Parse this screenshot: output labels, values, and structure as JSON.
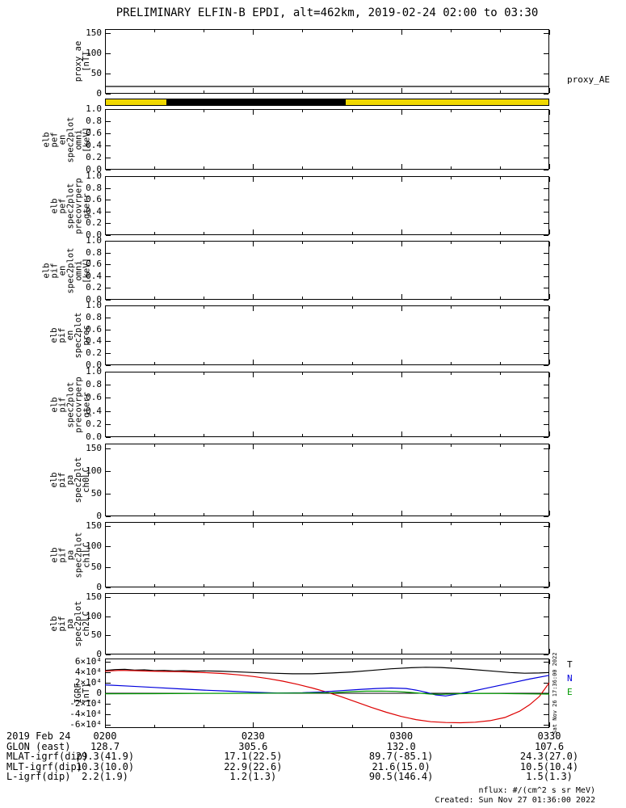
{
  "title": "PRELIMINARY ELFIN-B EPDI, alt=462km, 2019-02-24 02:00 to 03:30",
  "side_timestamp": "Sat Nov 26 17:36:00 2022",
  "footer": {
    "nflux": "nflux: #/(cm^2 s sr MeV)",
    "created": "Created: Sun Nov 27 01:36:00 2022"
  },
  "x_axis": {
    "date": "2019 Feb 24",
    "tick_labels": [
      "0200",
      "0230",
      "0300",
      "0330"
    ],
    "tick_minutes": [
      0,
      30,
      60,
      90
    ],
    "minor_step_minutes": 10,
    "range_minutes": [
      0,
      90
    ]
  },
  "bottom_rows": [
    {
      "label": "2019 Feb 24",
      "values": [
        "0200",
        "0230",
        "0300",
        "0330"
      ]
    },
    {
      "label": "GLON (east)",
      "values": [
        "128.7",
        "305.6",
        "132.0",
        "107.6"
      ]
    },
    {
      "label": "MLAT-igrf(dip)",
      "values": [
        "29.3(41.9)",
        "17.1(22.5)",
        "89.7(-85.1)",
        "24.3(27.0)"
      ]
    },
    {
      "label": "MLT-igrf(dip)",
      "values": [
        "10.3(10.0)",
        "22.9(22.6)",
        "21.6(15.0)",
        "10.5(10.4)"
      ]
    },
    {
      "label": "L-igrf(dip)",
      "values": [
        "2.2(1.9)",
        "1.2(1.3)",
        "90.5(146.4)",
        "1.5(1.3)"
      ]
    }
  ],
  "chart_data": [
    {
      "id": "proxy_ae",
      "type": "line",
      "ylabel_lines": [
        "proxy_ae",
        "[nT]"
      ],
      "ylim": [
        0,
        160
      ],
      "yticks": [
        {
          "v": 0,
          "label": "0"
        },
        {
          "v": 50,
          "label": "50"
        },
        {
          "v": 100,
          "label": "100"
        },
        {
          "v": 150,
          "label": "150"
        }
      ],
      "x_range_minutes": [
        0,
        90
      ],
      "series": [
        {
          "name": "proxy_AE",
          "color": "#000000",
          "x": [
            0,
            90
          ],
          "y": [
            18,
            18
          ]
        }
      ],
      "right_labels": [
        {
          "text": "proxy_AE",
          "color": "#000000"
        }
      ]
    },
    {
      "id": "flag_strip",
      "type": "flag-strip",
      "x_range_minutes": [
        0,
        90
      ],
      "base_color": "#f0d800",
      "segments": [
        {
          "color": "#000000",
          "from_min": 12.3,
          "to_min": 48.8
        }
      ]
    },
    {
      "id": "pef_en_omni",
      "type": "line",
      "ylabel_lines": [
        "elb",
        "pef",
        "en",
        "spec2plot",
        "omni",
        "[keV]"
      ],
      "ylim": [
        0,
        1
      ],
      "yticks": [
        {
          "v": 0.0,
          "label": "0.0"
        },
        {
          "v": 0.2,
          "label": "0.2"
        },
        {
          "v": 0.4,
          "label": "0.4"
        },
        {
          "v": 0.6,
          "label": "0.6"
        },
        {
          "v": 0.8,
          "label": "0.8"
        },
        {
          "v": 1.0,
          "label": "1.0"
        }
      ],
      "x_range_minutes": [
        0,
        90
      ],
      "series": []
    },
    {
      "id": "pef_precovrperp_gterr",
      "type": "line",
      "ylabel_lines": [
        "elb",
        "pef",
        "spec2plot",
        "precovrperp",
        "gterr"
      ],
      "ylim": [
        0,
        1
      ],
      "yticks": [
        {
          "v": 0.0,
          "label": "0.0"
        },
        {
          "v": 0.2,
          "label": "0.2"
        },
        {
          "v": 0.4,
          "label": "0.4"
        },
        {
          "v": 0.6,
          "label": "0.6"
        },
        {
          "v": 0.8,
          "label": "0.8"
        },
        {
          "v": 1.0,
          "label": "1.0"
        }
      ],
      "x_range_minutes": [
        0,
        90
      ],
      "series": []
    },
    {
      "id": "pif_en_omni",
      "type": "line",
      "ylabel_lines": [
        "elb",
        "pif",
        "en",
        "spec2plot",
        "omni",
        "[keV]"
      ],
      "ylim": [
        0,
        1
      ],
      "yticks": [
        {
          "v": 0.0,
          "label": "0.0"
        },
        {
          "v": 0.2,
          "label": "0.2"
        },
        {
          "v": 0.4,
          "label": "0.4"
        },
        {
          "v": 0.6,
          "label": "0.6"
        },
        {
          "v": 0.8,
          "label": "0.8"
        },
        {
          "v": 1.0,
          "label": "1.0"
        }
      ],
      "x_range_minutes": [
        0,
        90
      ],
      "series": []
    },
    {
      "id": "pif_en_prec",
      "type": "line",
      "ylabel_lines": [
        "elb",
        "pif",
        "en",
        "spec2plot",
        "prec"
      ],
      "ylim": [
        0,
        1
      ],
      "yticks": [
        {
          "v": 0.0,
          "label": "0.0"
        },
        {
          "v": 0.2,
          "label": "0.2"
        },
        {
          "v": 0.4,
          "label": "0.4"
        },
        {
          "v": 0.6,
          "label": "0.6"
        },
        {
          "v": 0.8,
          "label": "0.8"
        },
        {
          "v": 1.0,
          "label": "1.0"
        }
      ],
      "x_range_minutes": [
        0,
        90
      ],
      "series": []
    },
    {
      "id": "pif_precovrperp_gterr",
      "type": "line",
      "ylabel_lines": [
        "elb",
        "pif",
        "spec2plot",
        "precovrperp",
        "gterr"
      ],
      "ylim": [
        0,
        1
      ],
      "yticks": [
        {
          "v": 0.0,
          "label": "0.0"
        },
        {
          "v": 0.2,
          "label": "0.2"
        },
        {
          "v": 0.4,
          "label": "0.4"
        },
        {
          "v": 0.6,
          "label": "0.6"
        },
        {
          "v": 0.8,
          "label": "0.8"
        },
        {
          "v": 1.0,
          "label": "1.0"
        }
      ],
      "x_range_minutes": [
        0,
        90
      ],
      "series": []
    },
    {
      "id": "pif_pa_ch0lc",
      "type": "line",
      "ylabel_lines": [
        "elb",
        "pif",
        "pa",
        "spec2plot",
        "ch0LC"
      ],
      "ylim": [
        0,
        160
      ],
      "yticks": [
        {
          "v": 0,
          "label": "0"
        },
        {
          "v": 50,
          "label": "50"
        },
        {
          "v": 100,
          "label": "100"
        },
        {
          "v": 150,
          "label": "150"
        }
      ],
      "x_range_minutes": [
        0,
        90
      ],
      "series": []
    },
    {
      "id": "pif_pa_ch1lc",
      "type": "line",
      "ylabel_lines": [
        "elb",
        "pif",
        "pa",
        "spec2plot",
        "ch1LC"
      ],
      "ylim": [
        0,
        160
      ],
      "yticks": [
        {
          "v": 0,
          "label": "0"
        },
        {
          "v": 50,
          "label": "50"
        },
        {
          "v": 100,
          "label": "100"
        },
        {
          "v": 150,
          "label": "150"
        }
      ],
      "x_range_minutes": [
        0,
        90
      ],
      "series": []
    },
    {
      "id": "pif_pa_ch2lc",
      "type": "line",
      "ylabel_lines": [
        "elb",
        "pif",
        "pa",
        "spec2plot",
        "ch2LC"
      ],
      "ylim": [
        0,
        160
      ],
      "yticks": [
        {
          "v": 0,
          "label": "0"
        },
        {
          "v": 50,
          "label": "50"
        },
        {
          "v": 100,
          "label": "100"
        },
        {
          "v": 150,
          "label": "150"
        }
      ],
      "x_range_minutes": [
        0,
        90
      ],
      "series": []
    },
    {
      "id": "igrf",
      "type": "line",
      "ylabel_lines": [
        "IGRF",
        "[nT]"
      ],
      "ylim": [
        -66000,
        66000
      ],
      "zero_line": true,
      "yticks": [
        {
          "v": -60000,
          "label": "-6×10⁴"
        },
        {
          "v": -40000,
          "label": "-4×10⁴"
        },
        {
          "v": -20000,
          "label": "-2×10⁴"
        },
        {
          "v": 0,
          "label": "0"
        },
        {
          "v": 20000,
          "label": "2×10⁴"
        },
        {
          "v": 40000,
          "label": "4×10⁴"
        },
        {
          "v": 60000,
          "label": "6×10⁴"
        }
      ],
      "x_range_minutes": [
        0,
        90
      ],
      "series": [
        {
          "name": "T",
          "color": "#000000",
          "x": [
            0,
            2,
            4,
            6,
            8,
            10,
            12,
            14,
            16,
            18,
            20,
            23,
            26,
            30,
            34,
            38,
            42,
            46,
            50,
            54,
            58,
            62,
            65,
            68,
            71,
            74,
            78,
            82,
            85,
            88,
            90
          ],
          "y": [
            43500,
            45000,
            45500,
            44000,
            44500,
            43000,
            43500,
            42500,
            43000,
            42000,
            42500,
            42000,
            41000,
            39500,
            38000,
            37000,
            37000,
            38500,
            40500,
            43500,
            46500,
            48500,
            49500,
            49000,
            47500,
            45500,
            42500,
            39500,
            38000,
            38500,
            39500
          ]
        },
        {
          "name": "",
          "color": "#dd0000",
          "x": [
            0,
            3,
            6,
            9,
            12,
            15,
            18,
            21,
            24,
            27,
            30,
            33,
            36,
            39,
            42,
            45,
            48,
            51,
            54,
            57,
            60,
            63,
            66,
            69,
            72,
            75,
            78,
            81,
            84,
            86,
            88,
            90
          ],
          "y": [
            42000,
            43500,
            43000,
            42000,
            41500,
            41000,
            40000,
            39000,
            37500,
            35000,
            32000,
            28000,
            23000,
            17000,
            10000,
            2000,
            -7000,
            -17000,
            -27000,
            -36000,
            -44000,
            -50000,
            -54000,
            -55500,
            -56000,
            -55000,
            -52000,
            -46000,
            -34000,
            -22000,
            -6000,
            20000
          ]
        },
        {
          "name": "N",
          "color": "#0000dd",
          "x": [
            0,
            5,
            10,
            15,
            20,
            25,
            30,
            35,
            40,
            44,
            48,
            52,
            55,
            58,
            61,
            63,
            65,
            67,
            69,
            71,
            74,
            77,
            80,
            83,
            86,
            90
          ],
          "y": [
            16000,
            13500,
            11000,
            8500,
            6000,
            4000,
            2000,
            500,
            1000,
            2500,
            5000,
            7500,
            9000,
            10000,
            9000,
            6000,
            2000,
            -3000,
            -5000,
            -2000,
            3000,
            9000,
            15000,
            21000,
            27000,
            34000
          ]
        },
        {
          "name": "E",
          "color": "#009900",
          "x": [
            0,
            10,
            20,
            30,
            40,
            46,
            50,
            53,
            56,
            59,
            62,
            64,
            66,
            68,
            71,
            75,
            80,
            85,
            90
          ],
          "y": [
            -1000,
            -800,
            -200,
            0,
            500,
            1000,
            3000,
            4000,
            4200,
            3500,
            1500,
            0,
            -1500,
            -2000,
            -1000,
            -200,
            -500,
            -1000,
            -1500
          ]
        }
      ],
      "right_labels": [
        {
          "text": "T",
          "color": "#000000"
        },
        {
          "text": "N",
          "color": "#0000dd"
        },
        {
          "text": "E",
          "color": "#009900"
        }
      ]
    }
  ]
}
